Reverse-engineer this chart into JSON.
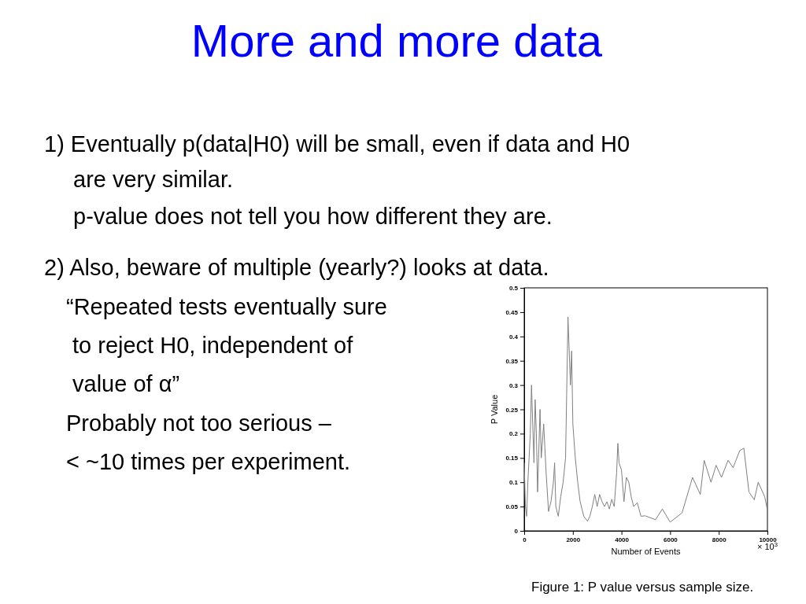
{
  "chart_data": {
    "type": "line",
    "title": "More and more data",
    "xlabel": "Number of Events",
    "ylabel": "P Value",
    "annotations": [
      "1)  Eventually p(data|H0) will be small, even if data and H0",
      "are very similar.",
      "p-value does not tell you how different they are.",
      "2)  Also, beware of multiple (yearly?) looks at data.",
      "“Repeated tests eventually sure",
      "to reject H0, independent of",
      "value of α”",
      "Probably not too serious –",
      "< ~10 times per experiment.",
      "Figure 1: P value versus sample size.",
      "× 10$^{3}$"
    ],
    "x": [
      0,
      50,
      100,
      150,
      250,
      300,
      350,
      400,
      450,
      500,
      550,
      650,
      700,
      800,
      900,
      1000,
      1100,
      1200,
      1250,
      1300,
      1400,
      1500,
      1600,
      1700,
      1800,
      1900,
      1950,
      2000,
      2100,
      2200,
      2300,
      2450,
      2600,
      2700,
      2800,
      2900,
      3000,
      3100,
      3200,
      3300,
      3400,
      3500,
      3600,
      3700,
      3800,
      3850,
      3900,
      4000,
      4100,
      4200,
      4300,
      4400,
      4500,
      4650,
      4800,
      4970,
      5400,
      5680,
      6000,
      6490,
      6920,
      7240,
      7400,
      7680,
      7890,
      8110,
      8380,
      8590,
      8860,
      9030,
      9240,
      9460,
      9620,
      9890,
      10000
    ],
    "series": [
      {
        "color": "#808080",
        "values": [
          0.14,
          0.05,
          0.03,
          0.1,
          0.2,
          0.3,
          0.22,
          0.14,
          0.27,
          0.2,
          0.08,
          0.25,
          0.15,
          0.22,
          0.12,
          0.04,
          0.06,
          0.1,
          0.14,
          0.05,
          0.03,
          0.07,
          0.1,
          0.15,
          0.44,
          0.3,
          0.37,
          0.22,
          0.15,
          0.1,
          0.06,
          0.03,
          0.02,
          0.03,
          0.05,
          0.075,
          0.05,
          0.075,
          0.06,
          0.05,
          0.06,
          0.045,
          0.065,
          0.05,
          0.12,
          0.18,
          0.14,
          0.125,
          0.06,
          0.11,
          0.1,
          0.07,
          0.05,
          0.058,
          0.03,
          0.031,
          0.023,
          0.045,
          0.018,
          0.037,
          0.11,
          0.075,
          0.145,
          0.1,
          0.135,
          0.11,
          0.145,
          0.13,
          0.165,
          0.17,
          0.08,
          0.064,
          0.1,
          0.07,
          0.042
        ]
      }
    ],
    "xlim": [
      0,
      10000
    ],
    "xticks": [
      0,
      2000,
      4000,
      6000,
      8000,
      10000
    ],
    "ylim": [
      0,
      0.5
    ],
    "yticks": [
      0,
      0.05,
      0.1,
      0.15,
      0.2,
      0.25,
      0.3,
      0.35,
      0.4,
      0.45,
      0.5
    ],
    "marker": "none",
    "line_style": "solid",
    "grid": false
  }
}
